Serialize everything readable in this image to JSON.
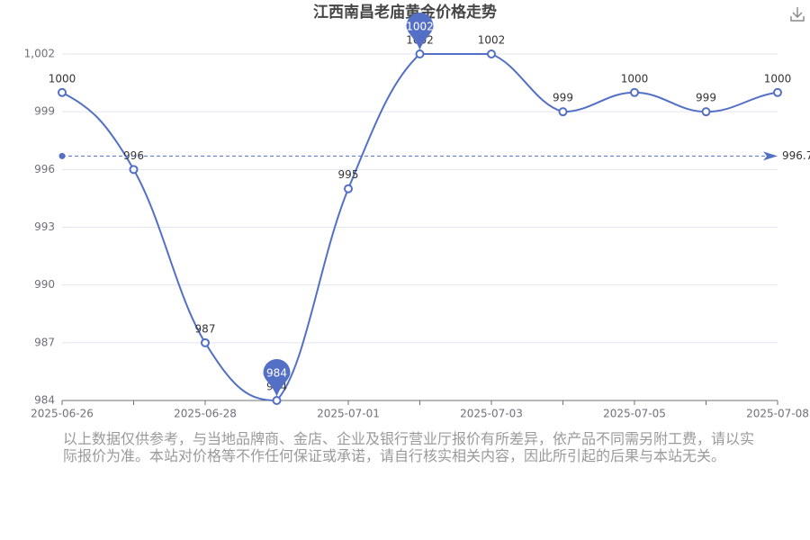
{
  "chart_data": {
    "type": "line",
    "title": "江西南昌老庙黄金价格走势",
    "categories": [
      "2025-06-26",
      null,
      "2025-06-28",
      null,
      "2025-07-01",
      null,
      "2025-07-03",
      null,
      "2025-07-05",
      null,
      "2025-07-08"
    ],
    "series": [
      {
        "color": "#5470c6",
        "values": [
          1000,
          996,
          987,
          984,
          995,
          1002,
          1002,
          999,
          1000,
          999,
          1000
        ]
      }
    ],
    "ylim": [
      984,
      1002
    ],
    "yticks": [
      984,
      987,
      990,
      993,
      996,
      999,
      {
        "value": 1002,
        "label": "1,002"
      }
    ],
    "grid": true,
    "average": 996.7,
    "note": "以上数据仅供参考，与当地品牌商、金店、企业及银行营业厅报价有所差异，依产品不同需另附工费，请以实际报价为准。本站对价格等不作任何保证或承诺，请自行核实相关内容，因此所引起的后果与本站无关。"
  }
}
